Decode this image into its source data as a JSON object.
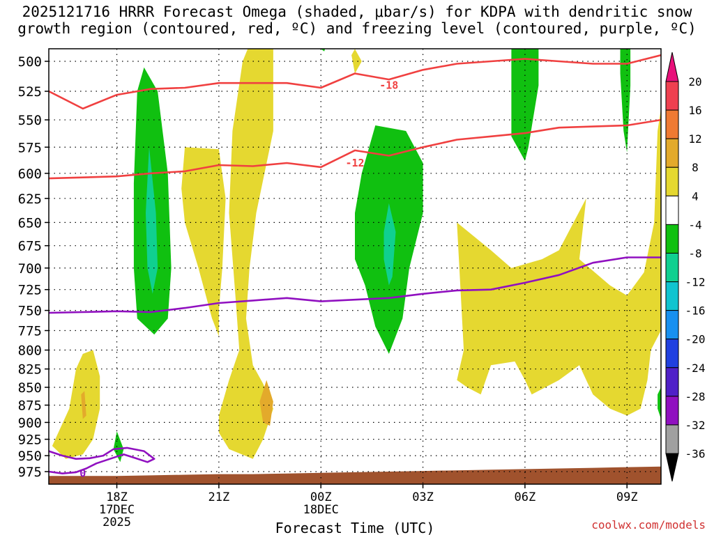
{
  "title": {
    "line1": "2025121716 HRRR Forecast Omega (shaded, μbar/s) for KDPA with dendritic snow",
    "line2": "growth region (contoured, red, ºC) and freezing level (contoured, purple, ºC)"
  },
  "credit": "coolwx.com/models",
  "chart_data": {
    "type": "heatmap",
    "xlabel": "Forecast Time (UTC)",
    "ylabel": "",
    "xlim": [
      16,
      34
    ],
    "ylim": [
      990,
      480
    ],
    "x_ticks": [
      {
        "x": 18,
        "label": "18Z",
        "sub1": "17DEC",
        "sub2": "2025"
      },
      {
        "x": 21,
        "label": "21Z",
        "sub1": "",
        "sub2": ""
      },
      {
        "x": 24,
        "label": "00Z",
        "sub1": "18DEC",
        "sub2": ""
      },
      {
        "x": 27,
        "label": "03Z",
        "sub1": "",
        "sub2": ""
      },
      {
        "x": 30,
        "label": "06Z",
        "sub1": "",
        "sub2": ""
      },
      {
        "x": 33,
        "label": "09Z",
        "sub1": "",
        "sub2": ""
      }
    ],
    "y_ticks": [
      500,
      525,
      550,
      575,
      600,
      625,
      650,
      675,
      700,
      725,
      750,
      775,
      800,
      825,
      850,
      875,
      900,
      925,
      950,
      975
    ],
    "colorbar": {
      "labels": [
        "20",
        "16",
        "12",
        "8",
        "4",
        "-4",
        "-8",
        "-12",
        "-16",
        "-20",
        "-24",
        "-28",
        "-32",
        "-36"
      ],
      "boundaries": [
        20,
        16,
        12,
        8,
        4,
        -4,
        -8,
        -12,
        -16,
        -20,
        -24,
        -28,
        -32,
        -36
      ],
      "colors": [
        "#ef4050",
        "#ef7a33",
        "#e3aa2b",
        "#e5d830",
        "#ffffff",
        "#10c010",
        "#10d090",
        "#10c4d0",
        "#1890f0",
        "#2040e0",
        "#5020c8",
        "#9010c0",
        "#a0a0a0"
      ],
      "top_color": "#e8107a",
      "bottom_color": "#000000"
    },
    "shaded_regions": [
      {
        "level": "4",
        "color": "#e5d830",
        "points": [
          [
            16.5,
            955
          ],
          [
            16.1,
            935
          ],
          [
            16.6,
            880
          ],
          [
            16.8,
            825
          ],
          [
            17.0,
            805
          ],
          [
            17.3,
            800
          ],
          [
            17.5,
            835
          ],
          [
            17.5,
            880
          ],
          [
            17.3,
            925
          ],
          [
            17.0,
            948
          ]
        ]
      },
      {
        "level": "4",
        "color": "#e5d830",
        "points": [
          [
            22.0,
            480
          ],
          [
            22.6,
            480
          ],
          [
            22.6,
            560
          ],
          [
            22.1,
            640
          ],
          [
            21.9,
            700
          ],
          [
            21.8,
            760
          ],
          [
            22.0,
            820
          ],
          [
            22.3,
            845
          ],
          [
            22.6,
            880
          ],
          [
            22.3,
            925
          ],
          [
            22.0,
            955
          ],
          [
            21.3,
            940
          ],
          [
            21.0,
            915
          ],
          [
            21.0,
            890
          ],
          [
            21.3,
            840
          ],
          [
            21.6,
            800
          ],
          [
            21.5,
            740
          ],
          [
            21.3,
            640
          ],
          [
            21.4,
            560
          ],
          [
            21.7,
            500
          ]
        ]
      },
      {
        "level": "4",
        "color": "#e5d830",
        "points": [
          [
            20.0,
            575
          ],
          [
            21.0,
            577
          ],
          [
            21.2,
            625
          ],
          [
            21.1,
            700
          ],
          [
            21.0,
            750
          ],
          [
            21.0,
            782
          ],
          [
            20.8,
            760
          ],
          [
            20.4,
            700
          ],
          [
            20.0,
            650
          ],
          [
            19.9,
            615
          ]
        ]
      },
      {
        "level": "4",
        "color": "#e5d830",
        "points": [
          [
            25.0,
            490
          ],
          [
            25.2,
            500
          ],
          [
            25.0,
            510
          ],
          [
            24.9,
            495
          ]
        ]
      },
      {
        "level": "4",
        "color": "#e5d830",
        "points": [
          [
            28.0,
            650
          ],
          [
            29.0,
            680
          ],
          [
            29.6,
            700
          ],
          [
            30.5,
            690
          ],
          [
            31.0,
            680
          ],
          [
            31.8,
            625
          ],
          [
            31.6,
            690
          ],
          [
            32.5,
            720
          ],
          [
            33.0,
            732
          ],
          [
            33.5,
            705
          ],
          [
            33.8,
            650
          ],
          [
            33.9,
            560
          ],
          [
            34.0,
            540
          ],
          [
            34.0,
            775
          ],
          [
            33.7,
            800
          ],
          [
            33.6,
            840
          ],
          [
            33.4,
            880
          ],
          [
            33.0,
            890
          ],
          [
            32.5,
            880
          ],
          [
            32.0,
            860
          ],
          [
            31.6,
            820
          ],
          [
            31.0,
            840
          ],
          [
            30.2,
            860
          ],
          [
            30.0,
            840
          ],
          [
            29.7,
            815
          ],
          [
            29.0,
            820
          ],
          [
            28.7,
            860
          ],
          [
            28.3,
            850
          ],
          [
            28.0,
            840
          ],
          [
            28.2,
            800
          ]
        ]
      },
      {
        "level": "8",
        "color": "#e3aa2b",
        "points": [
          [
            17.05,
            855
          ],
          [
            17.1,
            890
          ],
          [
            17.0,
            895
          ],
          [
            16.95,
            860
          ]
        ]
      },
      {
        "level": "8",
        "color": "#e3aa2b",
        "points": [
          [
            22.4,
            840
          ],
          [
            22.6,
            870
          ],
          [
            22.5,
            905
          ],
          [
            22.3,
            900
          ],
          [
            22.2,
            870
          ]
        ]
      },
      {
        "level": "-4",
        "color": "#10c010",
        "points": [
          [
            18.6,
            525
          ],
          [
            18.8,
            505
          ],
          [
            19.2,
            525
          ],
          [
            19.5,
            600
          ],
          [
            19.6,
            700
          ],
          [
            19.5,
            760
          ],
          [
            19.1,
            780
          ],
          [
            18.6,
            760
          ],
          [
            18.5,
            700
          ],
          [
            18.5,
            610
          ]
        ]
      },
      {
        "level": "-8",
        "color": "#10d090",
        "points": [
          [
            18.95,
            575
          ],
          [
            19.15,
            640
          ],
          [
            19.2,
            700
          ],
          [
            19.05,
            730
          ],
          [
            18.9,
            700
          ],
          [
            18.85,
            640
          ]
        ]
      },
      {
        "level": "-4",
        "color": "#10c010",
        "points": [
          [
            24.0,
            480
          ],
          [
            24.2,
            482
          ],
          [
            24.1,
            492
          ],
          [
            24.0,
            490
          ]
        ]
      },
      {
        "level": "-4",
        "color": "#10c010",
        "points": [
          [
            25.6,
            555
          ],
          [
            26.5,
            560
          ],
          [
            27.0,
            590
          ],
          [
            27.0,
            640
          ],
          [
            26.6,
            700
          ],
          [
            26.4,
            760
          ],
          [
            26.0,
            805
          ],
          [
            25.6,
            770
          ],
          [
            25.3,
            720
          ],
          [
            25.0,
            690
          ],
          [
            25.0,
            640
          ],
          [
            25.2,
            600
          ]
        ]
      },
      {
        "level": "-8",
        "color": "#10d090",
        "points": [
          [
            26.0,
            630
          ],
          [
            26.2,
            660
          ],
          [
            26.1,
            710
          ],
          [
            26.0,
            720
          ],
          [
            25.85,
            690
          ],
          [
            25.85,
            660
          ]
        ]
      },
      {
        "level": "-4",
        "color": "#10c010",
        "points": [
          [
            29.6,
            480
          ],
          [
            30.4,
            480
          ],
          [
            30.4,
            520
          ],
          [
            30.1,
            575
          ],
          [
            30.0,
            588
          ],
          [
            29.6,
            565
          ],
          [
            29.6,
            520
          ]
        ]
      },
      {
        "level": "-4",
        "color": "#10c010",
        "points": [
          [
            32.8,
            480
          ],
          [
            33.1,
            480
          ],
          [
            33.1,
            520
          ],
          [
            33.0,
            580
          ],
          [
            32.9,
            560
          ],
          [
            32.8,
            510
          ]
        ]
      },
      {
        "level": "-4",
        "color": "#10c010",
        "points": [
          [
            18.0,
            913
          ],
          [
            18.2,
            940
          ],
          [
            18.1,
            960
          ],
          [
            17.9,
            940
          ]
        ]
      },
      {
        "level": "-4",
        "color": "#10c010",
        "points": [
          [
            33.9,
            860
          ],
          [
            34.0,
            850
          ],
          [
            34.0,
            895
          ],
          [
            33.9,
            880
          ]
        ]
      }
    ],
    "contours": [
      {
        "label": "-18",
        "color": "#f04040",
        "label_at": [
          26.0,
          520
        ],
        "points": [
          [
            16.0,
            525
          ],
          [
            17.0,
            540
          ],
          [
            18.0,
            528
          ],
          [
            19.0,
            523
          ],
          [
            20.0,
            522
          ],
          [
            21.0,
            518
          ],
          [
            22.0,
            518
          ],
          [
            23.0,
            518
          ],
          [
            24.0,
            522
          ],
          [
            25.0,
            510
          ],
          [
            26.0,
            515
          ],
          [
            27.0,
            507
          ],
          [
            28.0,
            502
          ],
          [
            29.0,
            500
          ],
          [
            30.0,
            498
          ],
          [
            31.0,
            500
          ],
          [
            32.0,
            502
          ],
          [
            33.0,
            502
          ],
          [
            34.0,
            495
          ]
        ]
      },
      {
        "label": "-12",
        "color": "#f04040",
        "label_at": [
          25.0,
          590
        ],
        "points": [
          [
            16.0,
            605
          ],
          [
            17.0,
            604
          ],
          [
            18.0,
            603
          ],
          [
            19.0,
            600
          ],
          [
            20.0,
            598
          ],
          [
            21.0,
            592
          ],
          [
            22.0,
            593
          ],
          [
            23.0,
            590
          ],
          [
            24.0,
            594
          ],
          [
            25.0,
            578
          ],
          [
            26.0,
            583
          ],
          [
            27.0,
            575
          ],
          [
            28.0,
            568
          ],
          [
            29.0,
            565
          ],
          [
            30.0,
            562
          ],
          [
            31.0,
            557
          ],
          [
            32.0,
            556
          ],
          [
            33.0,
            555
          ],
          [
            34.0,
            550
          ]
        ]
      },
      {
        "label": "",
        "color": "#9010c0",
        "label_at": null,
        "points": [
          [
            16.0,
            753
          ],
          [
            17.0,
            752
          ],
          [
            18.0,
            751
          ],
          [
            19.0,
            752
          ],
          [
            20.0,
            747
          ],
          [
            21.0,
            741
          ],
          [
            22.0,
            738
          ],
          [
            23.0,
            735
          ],
          [
            24.0,
            739
          ],
          [
            25.0,
            737
          ],
          [
            26.0,
            735
          ],
          [
            27.0,
            730
          ],
          [
            28.0,
            726
          ],
          [
            29.0,
            725
          ],
          [
            30.0,
            717
          ],
          [
            31.0,
            708
          ],
          [
            32.0,
            694
          ],
          [
            33.0,
            688
          ],
          [
            34.0,
            688
          ]
        ]
      },
      {
        "label": "0",
        "color": "#9010c0",
        "label_at": [
          17.0,
          978
        ],
        "points": [
          [
            16.0,
            943
          ],
          [
            16.4,
            950
          ],
          [
            16.8,
            955
          ],
          [
            17.2,
            954
          ],
          [
            17.6,
            950
          ],
          [
            17.9,
            940
          ],
          [
            18.3,
            938
          ],
          [
            18.8,
            943
          ],
          [
            19.1,
            955
          ],
          [
            18.9,
            960
          ],
          [
            18.5,
            953
          ],
          [
            18.2,
            948
          ],
          [
            17.8,
            955
          ],
          [
            17.4,
            962
          ],
          [
            17.1,
            970
          ],
          [
            16.8,
            976
          ],
          [
            16.4,
            978
          ],
          [
            16.0,
            975
          ]
        ]
      }
    ],
    "terrain": {
      "color": "#a0522d",
      "points": [
        [
          16.0,
          982
        ],
        [
          17.0,
          982
        ],
        [
          18.0,
          982
        ],
        [
          19.0,
          981
        ],
        [
          20.0,
          980
        ],
        [
          21.0,
          979
        ],
        [
          22.0,
          979
        ],
        [
          23.0,
          978
        ],
        [
          24.0,
          977
        ],
        [
          25.0,
          976
        ],
        [
          26.0,
          975
        ],
        [
          27.0,
          974
        ],
        [
          28.0,
          973
        ],
        [
          29.0,
          972
        ],
        [
          30.0,
          971
        ],
        [
          31.0,
          970
        ],
        [
          32.0,
          969
        ],
        [
          33.0,
          968
        ],
        [
          34.0,
          967
        ]
      ]
    }
  }
}
